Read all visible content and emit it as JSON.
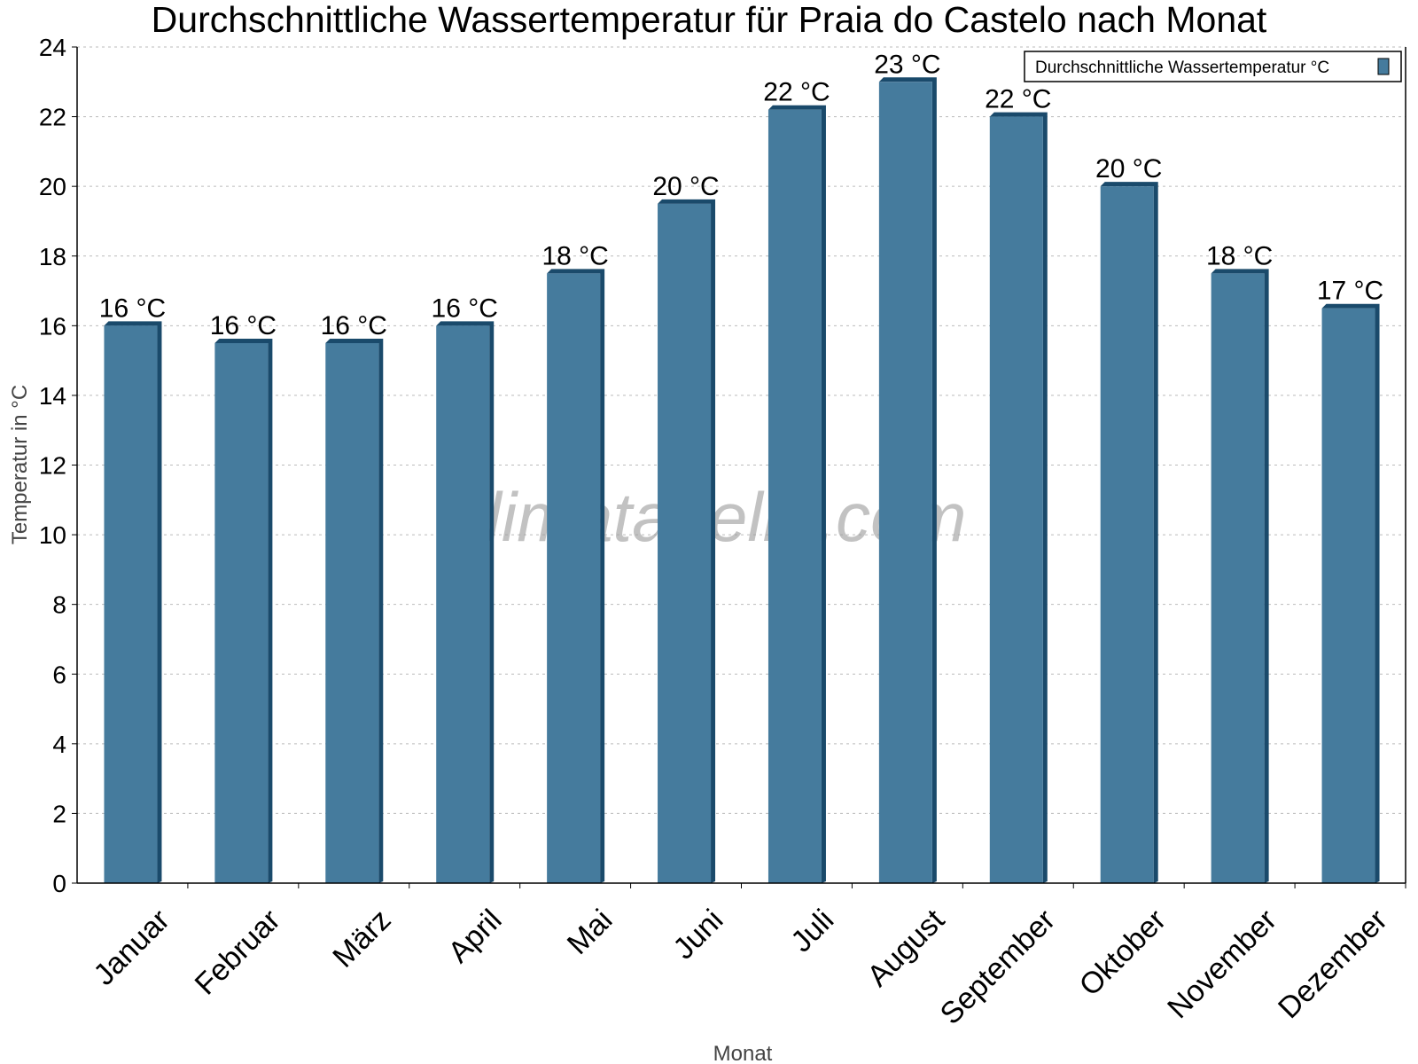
{
  "chart_data": {
    "type": "bar",
    "title": "Durchschnittliche Wassertemperatur für Praia do Castelo nach Monat",
    "xlabel": "Monat",
    "ylabel": "Temperatur in °C",
    "ylim": [
      0,
      24
    ],
    "yticks": [
      0,
      2,
      4,
      6,
      8,
      10,
      12,
      14,
      16,
      18,
      20,
      22,
      24
    ],
    "grid": true,
    "legend_position": "top-right",
    "categories": [
      "Januar",
      "Februar",
      "März",
      "April",
      "Mai",
      "Juni",
      "Juli",
      "August",
      "September",
      "Oktober",
      "November",
      "Dezember"
    ],
    "series": [
      {
        "name": "Durchschnittliche Wassertemperatur °C",
        "color": "#457b9d",
        "side_color": "#1a4a6b",
        "values": [
          16,
          15.5,
          15.5,
          16,
          17.5,
          19.5,
          22.2,
          23,
          22,
          20,
          17.5,
          16.5
        ],
        "labels": [
          "16 °C",
          "16 °C",
          "16 °C",
          "16 °C",
          "18 °C",
          "20 °C",
          "22 °C",
          "23 °C",
          "22 °C",
          "20 °C",
          "18 °C",
          "17 °C"
        ]
      }
    ],
    "watermark": "klimatabelle.com"
  }
}
